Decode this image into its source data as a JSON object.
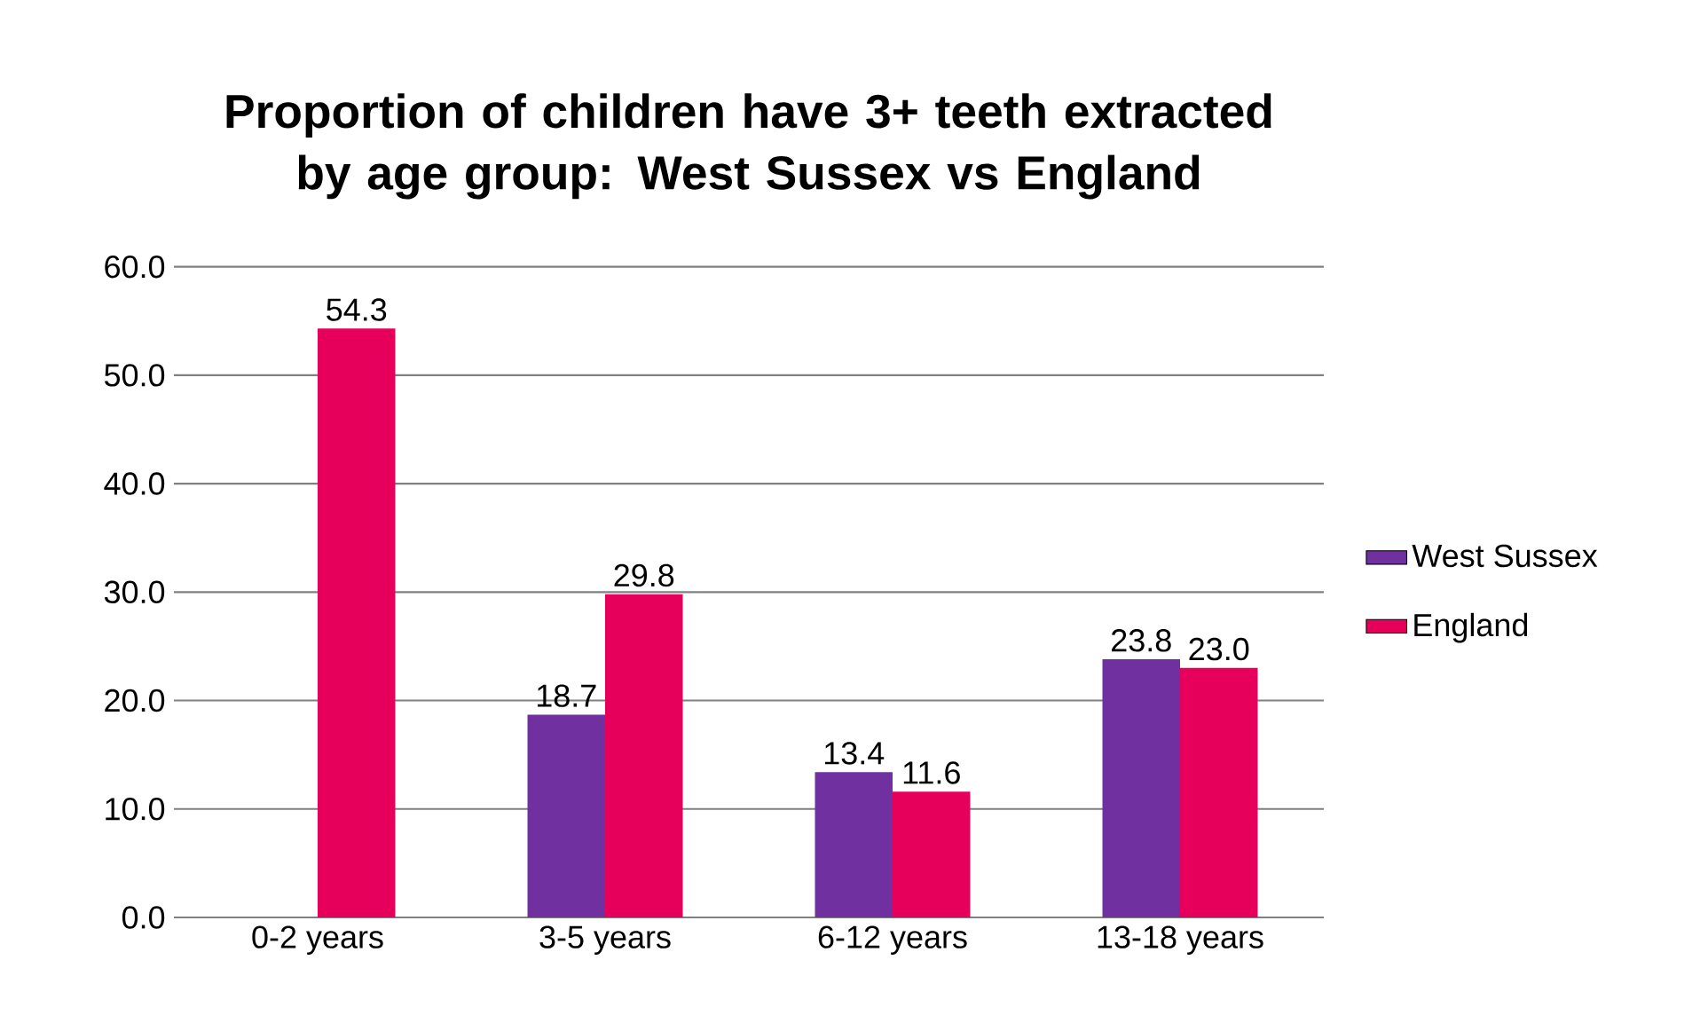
{
  "chart_data": {
    "type": "bar",
    "title": "Proportion of children have 3+ teeth extracted by age group: West Sussex vs England",
    "categories": [
      "0-2 years",
      "3-5 years",
      "6-12 years",
      "13-18 years"
    ],
    "series": [
      {
        "name": "West Sussex",
        "color": "#7030a0",
        "values": [
          null,
          18.7,
          13.4,
          23.8
        ],
        "value_labels": [
          null,
          "18.7",
          "13.4",
          "23.8"
        ]
      },
      {
        "name": "England",
        "color": "#e6005c",
        "values": [
          54.3,
          29.8,
          11.6,
          23.0
        ],
        "value_labels": [
          "54.3",
          "29.8",
          "11.6",
          "23.0"
        ]
      }
    ],
    "ylim": [
      0,
      60
    ],
    "yticks": [
      {
        "value": 0,
        "label": "0.0"
      },
      {
        "value": 10,
        "label": "10.0"
      },
      {
        "value": 20,
        "label": "20.0"
      },
      {
        "value": 30,
        "label": "30.0"
      },
      {
        "value": 40,
        "label": "40.0"
      },
      {
        "value": 50,
        "label": "50.0"
      },
      {
        "value": 60,
        "label": "60.0"
      }
    ],
    "grid": "y",
    "legend": "right"
  }
}
